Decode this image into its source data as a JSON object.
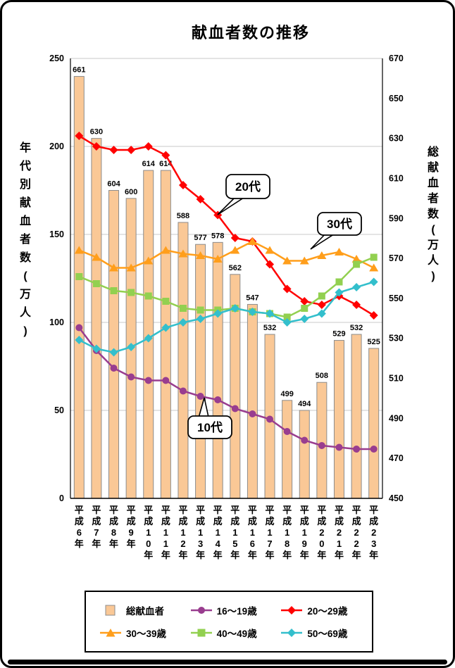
{
  "chart_data": {
    "type": "combo_bar_line",
    "title": "献血者数の推移",
    "categories": [
      "平成6年",
      "平成7年",
      "平成8年",
      "平成9年",
      "平成10年",
      "平成11年",
      "平成12年",
      "平成13年",
      "平成14年",
      "平成15年",
      "平成16年",
      "平成17年",
      "平成18年",
      "平成19年",
      "平成20年",
      "平成21年",
      "平成22年",
      "平成23年"
    ],
    "left_axis": {
      "label": "年代別献血者数(万人)",
      "min": 0,
      "max": 250,
      "ticks": [
        0,
        50,
        100,
        150,
        200,
        250
      ]
    },
    "right_axis": {
      "label": "総献血者数(万人)",
      "min": 450,
      "max": 670,
      "ticks": [
        450,
        470,
        490,
        510,
        530,
        550,
        570,
        590,
        610,
        630,
        650,
        670
      ]
    },
    "bar_series": {
      "name": "総献血者",
      "axis": "right",
      "color": "#FAC896",
      "border_color": "#8C8C8C",
      "show_value_labels": true,
      "values": [
        661,
        630,
        604,
        600,
        614,
        614,
        588,
        577,
        578,
        562,
        547,
        532,
        499,
        494,
        508,
        529,
        532,
        525
      ]
    },
    "line_series": [
      {
        "name": "16〜19歳",
        "axis": "left",
        "marker": "circle",
        "color": "#993D8F",
        "values": [
          97,
          84,
          74,
          69,
          67,
          67,
          61,
          58,
          56,
          51,
          48,
          45,
          38,
          33,
          30,
          29,
          28,
          28
        ]
      },
      {
        "name": "20〜29歳",
        "axis": "left",
        "marker": "diamond",
        "color": "#FF0000",
        "values": [
          206,
          200,
          198,
          198,
          200,
          195,
          178,
          170,
          161,
          148,
          146,
          133,
          119,
          112,
          110,
          115,
          110,
          104
        ]
      },
      {
        "name": "30〜39歳",
        "axis": "left",
        "marker": "triangle",
        "color": "#FF9E1B",
        "values": [
          141,
          137,
          131,
          131,
          135,
          141,
          139,
          138,
          136,
          141,
          146,
          141,
          135,
          135,
          138,
          140,
          136,
          131
        ]
      },
      {
        "name": "40〜49歳",
        "axis": "left",
        "marker": "square",
        "color": "#92D050",
        "values": [
          126,
          122,
          118,
          117,
          115,
          112,
          108,
          107,
          107,
          108,
          106,
          105,
          103,
          108,
          115,
          123,
          133,
          137
        ]
      },
      {
        "name": "50〜69歳",
        "axis": "left",
        "marker": "diamond",
        "color": "#33BFCC",
        "values": [
          90,
          85,
          83,
          86,
          91,
          97,
          100,
          102,
          105,
          108,
          106,
          105,
          100,
          102,
          105,
          117,
          120,
          123
        ]
      }
    ],
    "annotations": [
      {
        "text": "20代",
        "points_to": "20〜29歳"
      },
      {
        "text": "30代",
        "points_to": "30〜39歳"
      },
      {
        "text": "10代",
        "points_to": "16〜19歳"
      }
    ],
    "grid": "horizontal",
    "legend_position": "bottom",
    "gridline_color": "#C8C8C8"
  }
}
